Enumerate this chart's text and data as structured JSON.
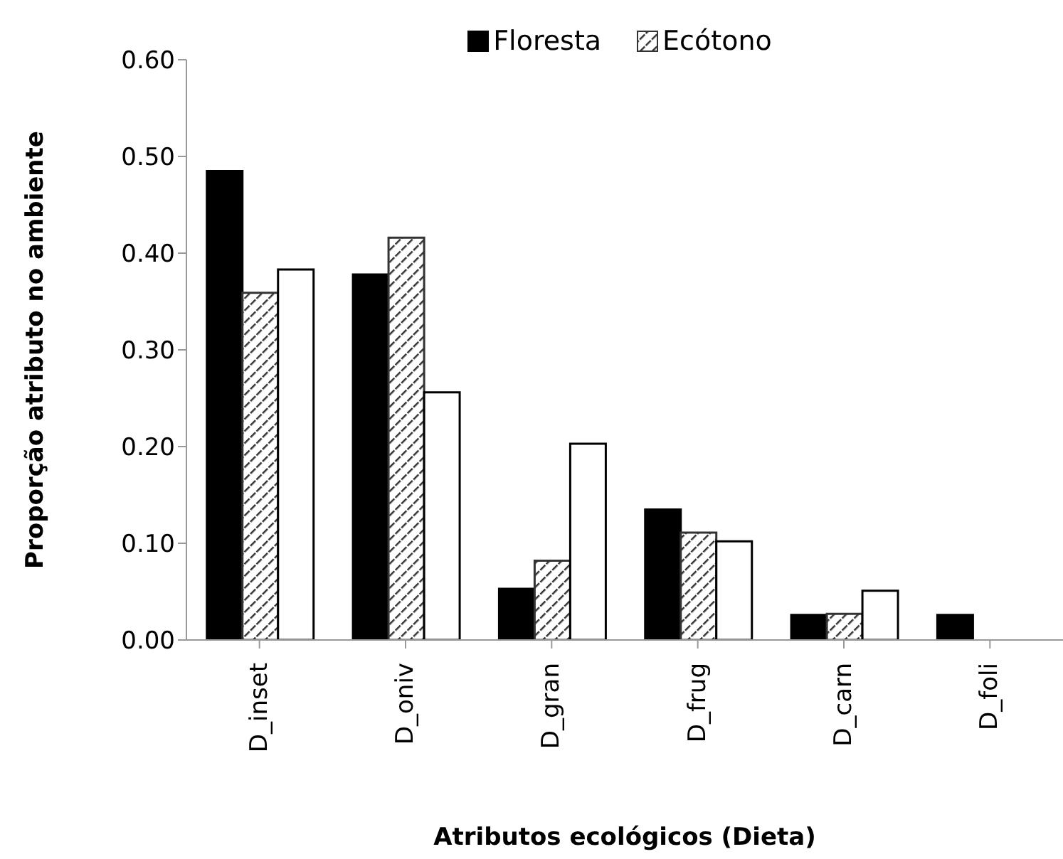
{
  "chart_data": {
    "type": "bar",
    "xlabel": "Atributos ecológicos (Dieta)",
    "ylabel": "Proporção atributo no ambiente",
    "categories": [
      "D_inset",
      "D_oniv",
      "D_gran",
      "D_frug",
      "D_carn",
      "D_foli"
    ],
    "series": [
      {
        "name": "Floresta",
        "color": "#000000",
        "values": [
          0.485,
          0.378,
          0.053,
          0.135,
          0.026,
          0.026
        ]
      },
      {
        "name": "Ecótono",
        "color": "#333333",
        "values": [
          0.359,
          0.416,
          0.082,
          0.111,
          0.027,
          0
        ]
      },
      {
        "color": "#ffffff",
        "values": [
          0.383,
          0.256,
          0.203,
          0.102,
          0.051,
          0
        ]
      }
    ],
    "ylim": [
      0,
      0.6
    ],
    "yticks": [
      {
        "value": 0,
        "label": "0.00"
      },
      {
        "value": 0.1,
        "label": "0.10"
      },
      {
        "value": 0.2,
        "label": "0.20"
      },
      {
        "value": 0.3,
        "label": "0.30"
      },
      {
        "value": 0.4,
        "label": "0.40"
      },
      {
        "value": 0.5,
        "label": "0.50"
      },
      {
        "value": 0.6,
        "label": "0.60"
      }
    ],
    "grid": false,
    "legend": "top"
  }
}
